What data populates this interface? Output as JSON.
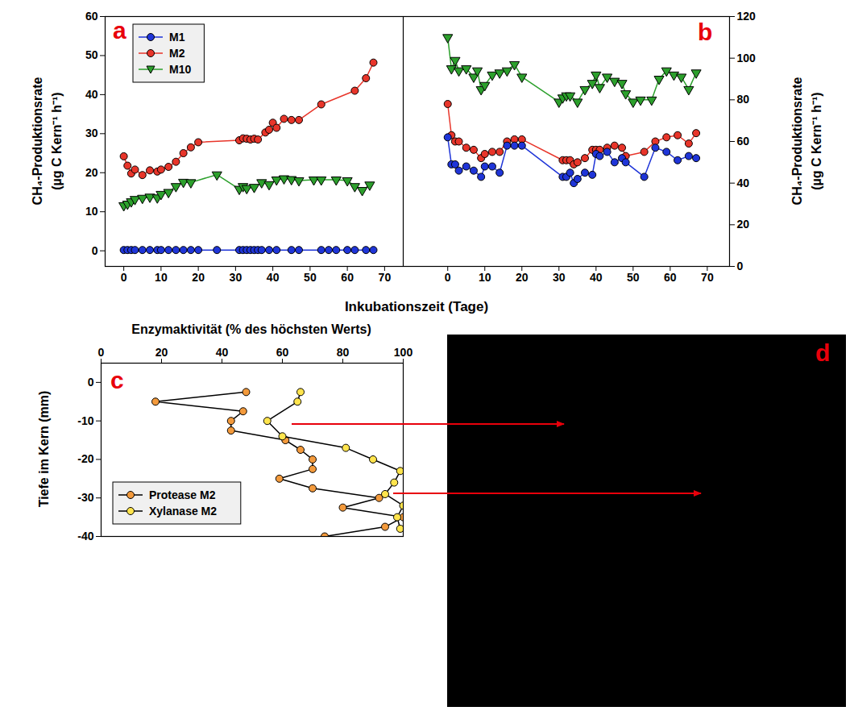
{
  "chart_data": [
    {
      "panel_label": "a",
      "type": "line",
      "xlabel": "Inkubationszeit (Tage)",
      "ylabel": "CH₄-Produktionsrate (µg C Kern⁻¹ h⁻¹)",
      "xlim": [
        -5,
        75
      ],
      "xticks": [
        0,
        10,
        20,
        30,
        40,
        50,
        60,
        70
      ],
      "ylim": [
        -4,
        60
      ],
      "yticks": [
        0,
        10,
        20,
        30,
        40,
        50,
        60
      ],
      "legend": "upper left",
      "series": [
        {
          "name": "M1",
          "color": "#1f35d8",
          "marker": "circle",
          "x": [
            0,
            1,
            2,
            3,
            5,
            7,
            9,
            10,
            12,
            14,
            16,
            18,
            20,
            25,
            31,
            32,
            33,
            34,
            35,
            36,
            37,
            39,
            41,
            45,
            47,
            53,
            55,
            57,
            60,
            62,
            65,
            67
          ],
          "values": [
            0.2,
            0.2,
            0.2,
            0.2,
            0.2,
            0.2,
            0.2,
            0.2,
            0.2,
            0.2,
            0.2,
            0.2,
            0.2,
            0.2,
            0.2,
            0.2,
            0.2,
            0.2,
            0.2,
            0.2,
            0.2,
            0.2,
            0.2,
            0.2,
            0.2,
            0.2,
            0.2,
            0.2,
            0.2,
            0.2,
            0.2,
            0.2
          ]
        },
        {
          "name": "M2",
          "color": "#e8352a",
          "marker": "circle",
          "x": [
            0,
            1,
            2,
            3,
            5,
            7,
            9,
            10,
            12,
            14,
            16,
            18,
            20,
            31,
            32,
            33,
            34,
            35,
            36,
            38,
            39,
            40,
            41,
            43,
            45,
            47,
            53,
            62,
            65,
            67
          ],
          "values": [
            24.2,
            21.8,
            19.8,
            20.8,
            19.4,
            20.6,
            20.3,
            20.8,
            21.5,
            22.8,
            25,
            26.5,
            27.8,
            28.3,
            28.8,
            28.7,
            28.5,
            28.7,
            28.5,
            30.3,
            31,
            32.8,
            31.5,
            33.8,
            33.5,
            33.5,
            37.5,
            41,
            44.2,
            48.2
          ]
        },
        {
          "name": "M10",
          "color": "#2ca02c",
          "marker": "triangle_down",
          "x": [
            0,
            1,
            2,
            3,
            5,
            7,
            9,
            10,
            12,
            14,
            16,
            18,
            25,
            31,
            32,
            33,
            35,
            37,
            39,
            41,
            43,
            45,
            47,
            51,
            53,
            57,
            60,
            62,
            64,
            66
          ],
          "values": [
            11.6,
            12,
            12.6,
            13.2,
            13.5,
            13.8,
            13.6,
            14.5,
            15,
            16.5,
            17.6,
            17.5,
            19.5,
            15.8,
            16.5,
            16,
            16.3,
            17.5,
            17,
            18.2,
            18.5,
            18.3,
            18,
            18.2,
            18.2,
            18.2,
            18,
            16.5,
            15.5,
            16.9
          ]
        }
      ]
    },
    {
      "panel_label": "b",
      "type": "line",
      "y2label": "CH₄-Produktionsrate (µg C Kern⁻¹ h⁻¹)",
      "xlim": [
        -12,
        76
      ],
      "xticks": [
        0,
        10,
        20,
        30,
        40,
        50,
        60,
        70
      ],
      "y2lim": [
        0,
        120
      ],
      "y2ticks": [
        0,
        20,
        40,
        60,
        80,
        100,
        120
      ],
      "series": [
        {
          "color": "#2ca02c",
          "marker": "triangle_down",
          "axis": "y2",
          "x": [
            0,
            1,
            2,
            3,
            5,
            7,
            8,
            9,
            10,
            12,
            14,
            16,
            18,
            20,
            30,
            31,
            32,
            33,
            35,
            37,
            39,
            40,
            41,
            43,
            45,
            47,
            48,
            50,
            52,
            55,
            57,
            59,
            61,
            63,
            65,
            67
          ],
          "values": [
            110,
            95,
            99,
            94,
            95,
            91,
            94,
            85,
            87,
            92,
            93,
            94,
            97,
            91,
            79,
            81,
            82,
            82,
            79,
            85,
            88,
            92,
            86,
            91,
            89,
            88,
            83,
            79,
            80,
            80,
            90,
            94,
            92,
            91,
            85,
            93
          ]
        },
        {
          "color": "#e8352a",
          "marker": "circle",
          "axis": "y2",
          "x": [
            0,
            1,
            2,
            3,
            5,
            7,
            9,
            10,
            12,
            14,
            16,
            18,
            20,
            31,
            32,
            33,
            34,
            35,
            37,
            39,
            40,
            41,
            43,
            45,
            47,
            48,
            53,
            56,
            59,
            62,
            65,
            67
          ],
          "values": [
            78,
            63,
            60,
            60,
            57,
            56,
            52,
            54,
            55,
            55,
            60,
            61,
            61,
            51,
            51,
            51,
            49,
            50,
            52,
            56,
            56,
            56,
            57,
            58,
            57,
            53,
            55,
            60,
            62,
            63,
            59,
            64
          ]
        },
        {
          "color": "#1f35d8",
          "marker": "circle",
          "axis": "y2",
          "x": [
            0,
            1,
            2,
            3,
            5,
            7,
            9,
            10,
            12,
            14,
            16,
            18,
            20,
            31,
            32,
            33,
            34,
            35,
            37,
            39,
            40,
            41,
            43,
            45,
            47,
            48,
            53,
            56,
            59,
            62,
            65,
            67
          ],
          "values": [
            62,
            49,
            49,
            46,
            48,
            46,
            43,
            48,
            48,
            45,
            58,
            58,
            58,
            43,
            43,
            45,
            40,
            42,
            45,
            44,
            54,
            53,
            55,
            50,
            52,
            50,
            43,
            57,
            55,
            51,
            53,
            52
          ]
        }
      ]
    },
    {
      "panel_label": "c",
      "type": "line",
      "xlabel": "Enzymaktivität (% des höchsten Werts)",
      "ylabel": "Tiefe im Kern (mm)",
      "xlim": [
        0,
        100
      ],
      "xticks": [
        0,
        20,
        40,
        60,
        80,
        100
      ],
      "ylim": [
        -40,
        5
      ],
      "yticks": [
        0,
        -10,
        -20,
        -30,
        -40
      ],
      "legend": "lower left",
      "series": [
        {
          "name": "Protease M2",
          "color": "#f39a3c",
          "marker": "circle",
          "x": [
            48,
            18,
            47,
            43,
            43,
            61,
            66,
            70,
            70,
            59,
            70,
            92,
            80,
            100,
            94,
            74
          ],
          "y": [
            -2.5,
            -5,
            -7.5,
            -10,
            -12.5,
            -15,
            -17.5,
            -20,
            -22.5,
            -25,
            -27.5,
            -30,
            -32.5,
            -35,
            -37.5,
            -40
          ]
        },
        {
          "name": "Xylanase M2",
          "color": "#ffe44d",
          "marker": "circle",
          "x": [
            66,
            65,
            55,
            60,
            81,
            90,
            99,
            97,
            94,
            100,
            98,
            99
          ],
          "y": [
            -2.5,
            -5,
            -10,
            -14,
            -17,
            -20,
            -23,
            -26,
            -29,
            -32,
            -35,
            -38
          ]
        }
      ]
    },
    {
      "panel_label": "d",
      "type": "image"
    }
  ]
}
